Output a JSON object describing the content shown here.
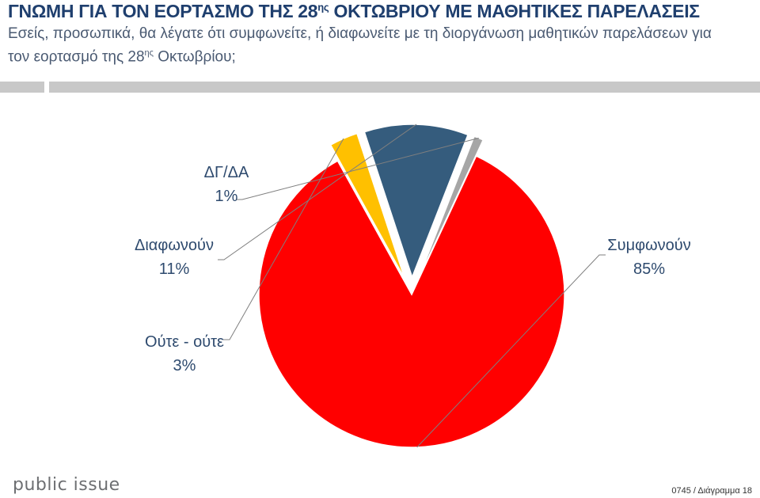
{
  "header": {
    "title_pre": "ΓΝΩΜΗ ΓΙΑ ΤΟΝ ΕΟΡΤΑΣΜΟ ΤΗΣ 28",
    "title_sup": "ης",
    "title_post": " ΟΚΤΩΒΡΙΟΥ ΜΕ ΜΑΘΗΤΙΚΕΣ ΠΑΡΕΛΑΣΕΙΣ",
    "question_pre": "Εσείς, προσωπικά, θα λέγατε ότι συμφωνείτε, ή διαφωνείτε με τη διοργάνωση μαθητικών παρελάσεων για τον εορτασμό της 28",
    "question_sup": "ης",
    "question_post": " Οκτωβρίου;"
  },
  "chart_data": {
    "type": "pie",
    "title": "",
    "start_angle_deg": 25,
    "slices": [
      {
        "label": "Συμφωνούν",
        "value": 85,
        "value_label": "85%",
        "color": "#ff0000",
        "exploded": false
      },
      {
        "label": "Ούτε - ούτε",
        "value": 3,
        "value_label": "3%",
        "color": "#ffc000",
        "exploded": true
      },
      {
        "label": "Διαφωνούν",
        "value": 11,
        "value_label": "11%",
        "color": "#355c7d",
        "exploded": true
      },
      {
        "label": "ΔΓ/ΔΑ",
        "value": 1,
        "value_label": "1%",
        "color": "#a6a6a6",
        "exploded": true
      }
    ],
    "legend": "none",
    "data_labels": "outside with leader lines"
  },
  "footer": {
    "brand": "public issue",
    "page_ref": "0745 / Διάγραμμα 18"
  }
}
